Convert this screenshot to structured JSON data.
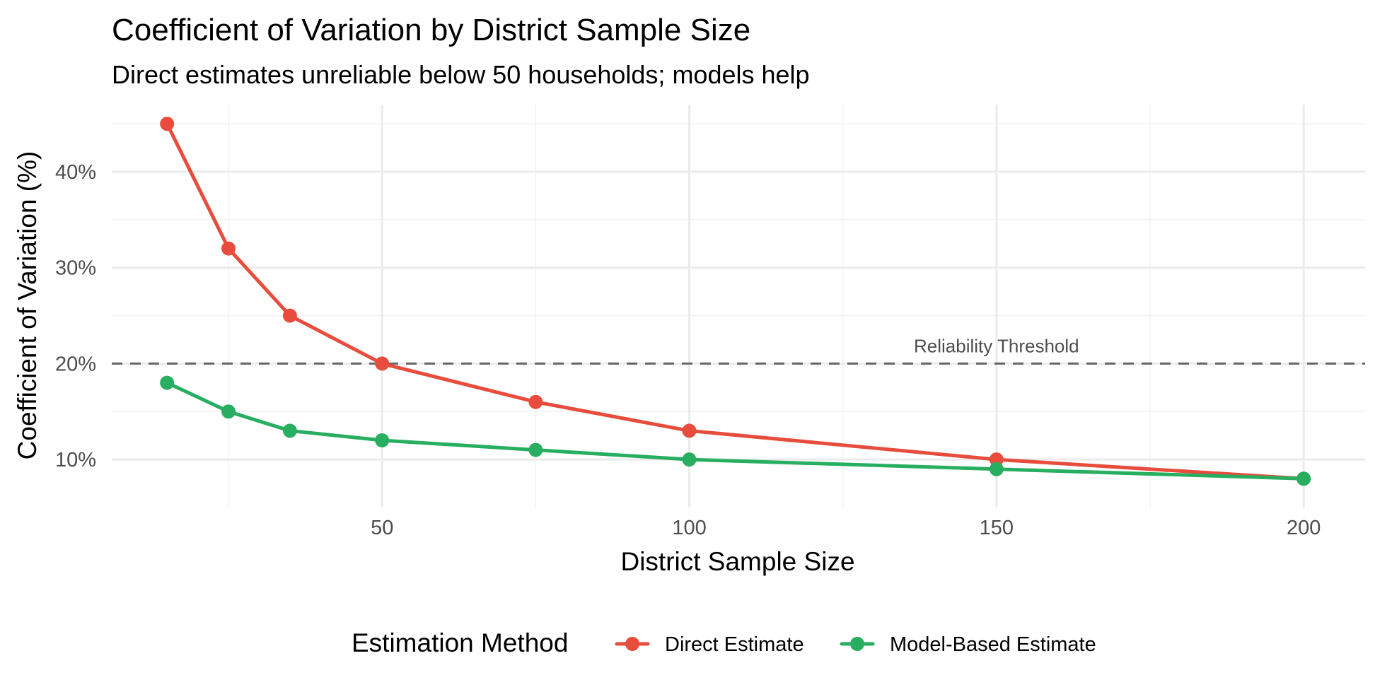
{
  "chart_data": {
    "type": "line",
    "title": "Coefficient of Variation by District Sample Size",
    "subtitle": "Direct estimates unreliable below 50 households; models help",
    "xlabel": "District Sample Size",
    "ylabel": "Coefficient of Variation (%)",
    "x": [
      15,
      25,
      35,
      50,
      75,
      100,
      150,
      200
    ],
    "x_ticks": [
      50,
      100,
      150,
      200
    ],
    "x_minor_ticks": [
      25,
      75,
      125,
      175
    ],
    "xlim": [
      6,
      210
    ],
    "y_ticks": [
      10,
      20,
      30,
      40
    ],
    "y_tick_labels": [
      "10%",
      "20%",
      "30%",
      "40%"
    ],
    "y_minor_ticks": [
      15,
      25,
      35,
      45
    ],
    "ylim": [
      5,
      47
    ],
    "series": [
      {
        "name": "Direct Estimate",
        "color": "#E74C3C",
        "values": [
          45,
          32,
          25,
          20,
          16,
          13,
          10,
          8
        ]
      },
      {
        "name": "Model-Based Estimate",
        "color": "#27AE60",
        "values": [
          18,
          15,
          13,
          12,
          11,
          10,
          9,
          8
        ]
      }
    ],
    "reference_line": {
      "y": 20,
      "label": "Reliability Threshold",
      "label_x": 150,
      "style": "dashed",
      "color": "#666666"
    },
    "legend": {
      "title": "Estimation Method",
      "position": "bottom"
    },
    "grid": true
  }
}
